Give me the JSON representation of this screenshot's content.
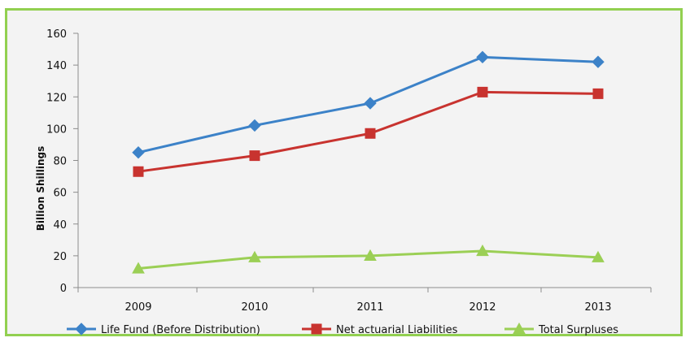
{
  "chart_data": {
    "type": "line",
    "title": "",
    "xlabel": "",
    "ylabel": "Billion Shillings",
    "categories": [
      "2009",
      "2010",
      "2011",
      "2012",
      "2013"
    ],
    "ylim": [
      0,
      160
    ],
    "yticks": [
      0,
      20,
      40,
      60,
      80,
      100,
      120,
      140,
      160
    ],
    "grid": false,
    "legend_position": "bottom",
    "series": [
      {
        "name": "Life Fund (Before Distribution)",
        "values": [
          85,
          102,
          116,
          145,
          142
        ],
        "color": "#3c82c8",
        "marker": "diamond"
      },
      {
        "name": "Net actuarial Liabilities",
        "values": [
          73,
          83,
          97,
          123,
          122
        ],
        "color": "#c8332f",
        "marker": "square"
      },
      {
        "name": "Total Surpluses",
        "values": [
          12,
          19,
          20,
          23,
          19
        ],
        "color": "#9bcf55",
        "marker": "triangle"
      }
    ]
  },
  "colors": {
    "frame_border": "#92d050",
    "plot_background": "#f3f3f3"
  }
}
